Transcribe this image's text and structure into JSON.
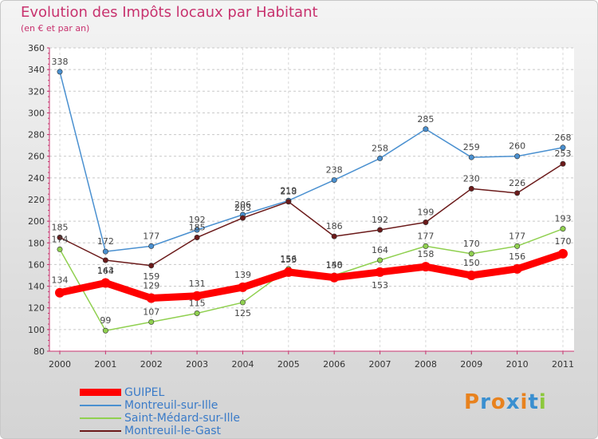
{
  "header": {
    "title": "Evolution des Impôts locaux par Habitant",
    "subtitle": "(en € et par an)"
  },
  "logo": {
    "text": "Proxiti",
    "letter_colors": [
      "#e8821e",
      "#3a8fd0",
      "#e8821e",
      "#3a8fd0",
      "#e8821e",
      "#3a8fd0",
      "#8cc83c"
    ]
  },
  "chart_data": {
    "type": "line",
    "title": "Evolution des Impôts locaux par Habitant",
    "subtitle": "(en € et par an)",
    "xlabel": "",
    "ylabel": "",
    "x": [
      "2000",
      "2001",
      "2002",
      "2003",
      "2004",
      "2005",
      "2006",
      "2007",
      "2008",
      "2009",
      "2010",
      "2011"
    ],
    "ylim": [
      80,
      360
    ],
    "yticks": [
      80,
      100,
      120,
      140,
      160,
      180,
      200,
      220,
      240,
      260,
      280,
      300,
      320,
      340,
      360
    ],
    "grid": "horizontal dashed",
    "legend_position": "bottom-left",
    "series": [
      {
        "name": "GUIPEL",
        "color": "#ff0000",
        "emphasis": true,
        "values": [
          134,
          143,
          129,
          131,
          139,
          153,
          148,
          153,
          158,
          150,
          156,
          170
        ]
      },
      {
        "name": "Montreuil-sur-Ille",
        "color": "#4a90d0",
        "emphasis": false,
        "values": [
          338,
          172,
          177,
          192,
          206,
          219,
          238,
          258,
          285,
          259,
          260,
          268
        ]
      },
      {
        "name": "Saint-Médard-sur-Ille",
        "color": "#90d050",
        "emphasis": false,
        "values": [
          174,
          99,
          107,
          115,
          125,
          156,
          150,
          164,
          177,
          170,
          177,
          193
        ]
      },
      {
        "name": "Montreuil-le-Gast",
        "color": "#6b1a1a",
        "emphasis": false,
        "values": [
          185,
          164,
          159,
          185,
          203,
          218,
          186,
          192,
          199,
          230,
          226,
          253
        ]
      }
    ]
  }
}
